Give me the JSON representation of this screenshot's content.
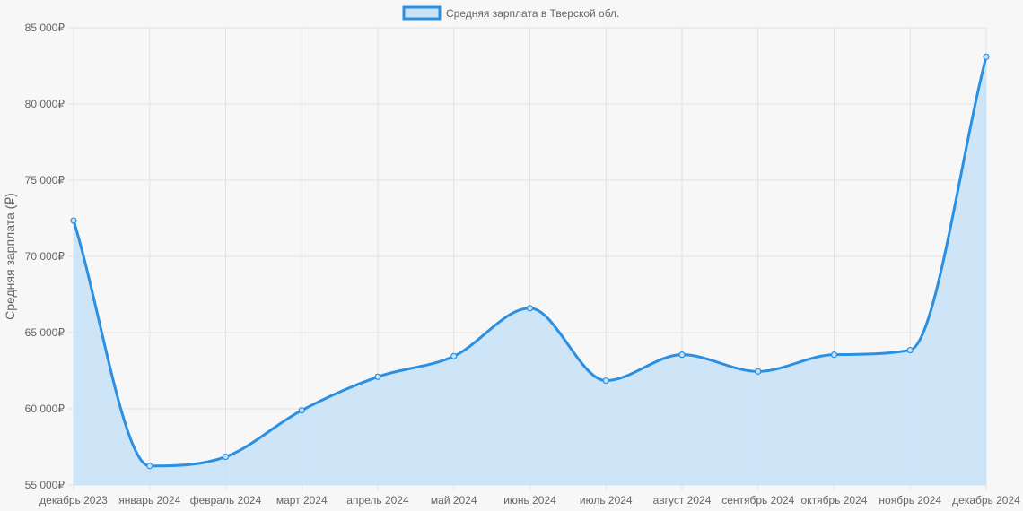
{
  "chart_data": {
    "type": "area",
    "legend": {
      "label": "Средняя зарплата в Тверской обл.",
      "position": "top-center"
    },
    "ylabel": "Средняя зарплата (₽)",
    "xlabel": "",
    "ylim": [
      55000,
      85000
    ],
    "yticks": [
      55000,
      60000,
      65000,
      70000,
      75000,
      80000,
      85000
    ],
    "ytick_labels": [
      "55 000₽",
      "60 000₽",
      "65 000₽",
      "70 000₽",
      "75 000₽",
      "80 000₽",
      "85 000₽"
    ],
    "grid": true,
    "categories": [
      "декабрь 2023",
      "январь 2024",
      "февраль 2024",
      "март 2024",
      "апрель 2024",
      "май 2024",
      "июнь 2024",
      "июль 2024",
      "август 2024",
      "сентябрь 2024",
      "октябрь 2024",
      "ноябрь 2024",
      "декабрь 2024"
    ],
    "series": [
      {
        "name": "Средняя зарплата в Тверской обл.",
        "values": [
          72350,
          56250,
          56850,
          59900,
          62100,
          63450,
          66600,
          61850,
          63550,
          62450,
          63550,
          63850,
          83100
        ]
      }
    ],
    "colors": {
      "line": "#2b8fe2",
      "fill": "#c9e2f7",
      "grid": "#e2e2e2",
      "text": "#666666"
    }
  }
}
